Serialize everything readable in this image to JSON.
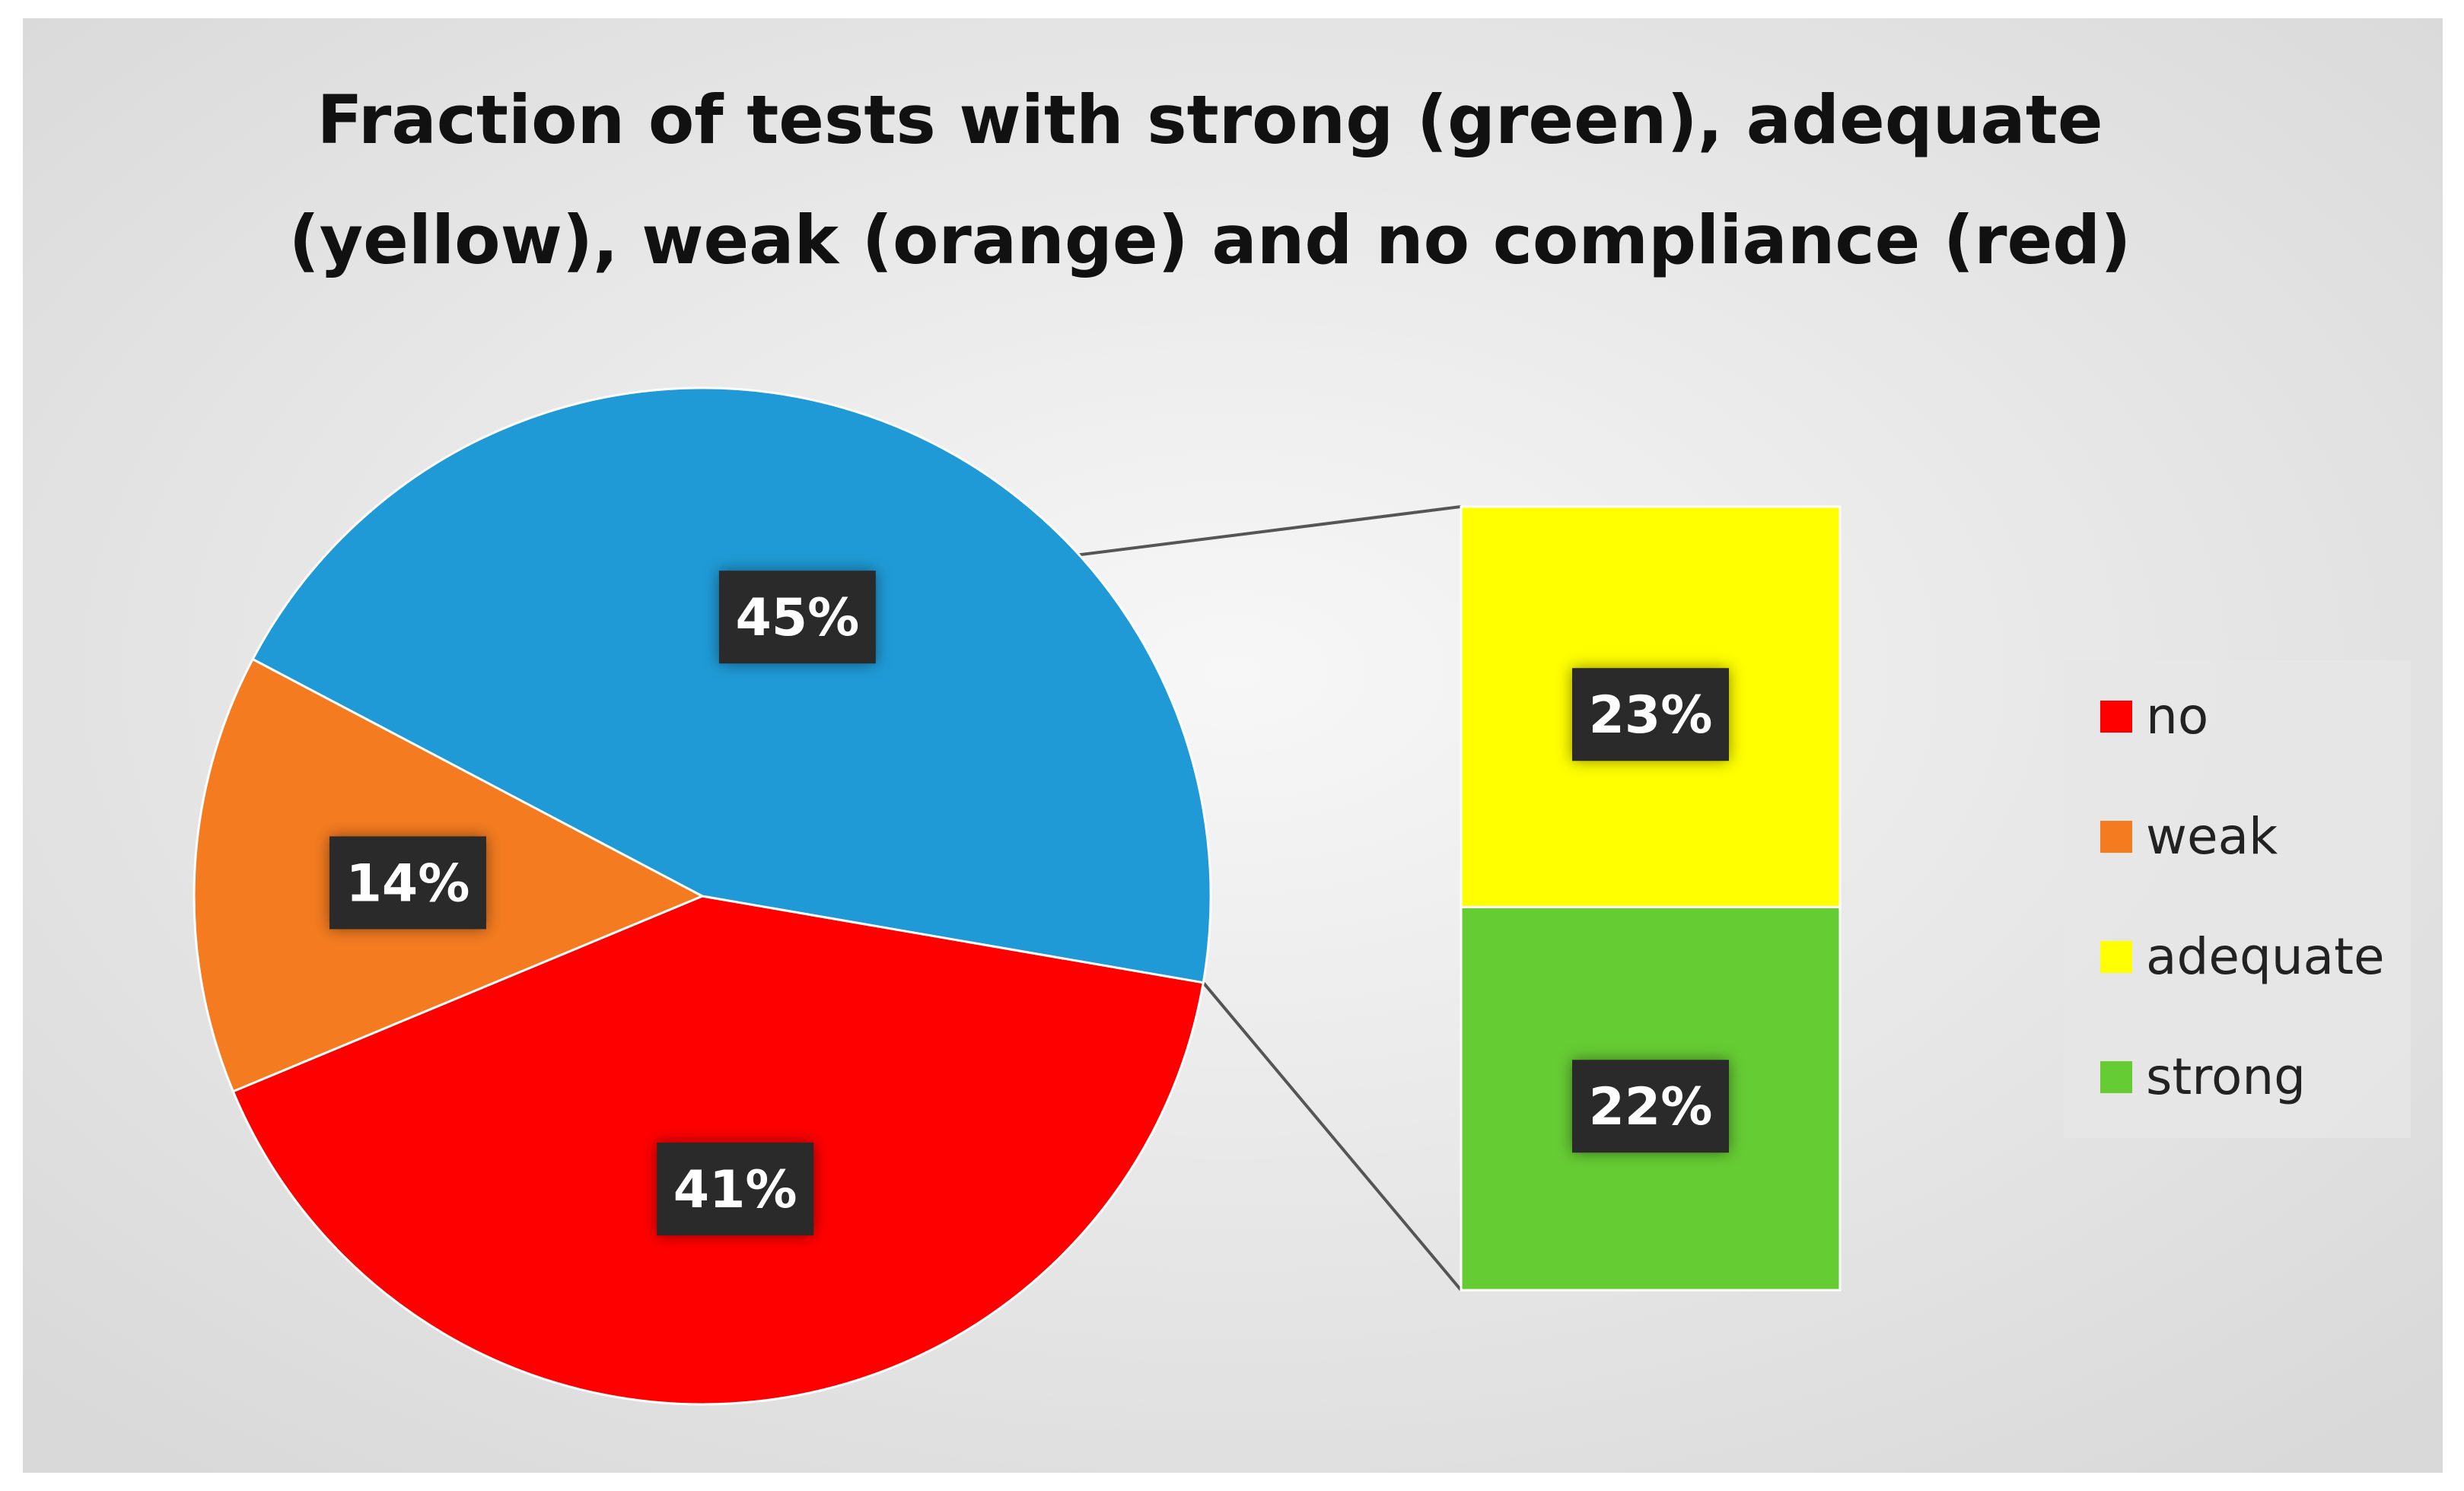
{
  "chart_data": {
    "type": "pie",
    "subtype": "bar-of-pie",
    "title_lines": [
      "Fraction of tests with strong (green), adequate",
      "(yellow), weak (orange) and no compliance (red)"
    ],
    "pie": {
      "slices": [
        {
          "key": "no",
          "value": 41,
          "label": "41%",
          "color": "#ff0000"
        },
        {
          "key": "weak",
          "value": 14,
          "label": "14%",
          "color": "#f47b20"
        },
        {
          "key": "other",
          "value": 45,
          "label": "45%",
          "color": "#1f9ad6"
        }
      ]
    },
    "bar": {
      "segments": [
        {
          "key": "adequate",
          "value": 23,
          "label": "23%",
          "color": "#ffff00"
        },
        {
          "key": "strong",
          "value": 22,
          "label": "22%",
          "color": "#66cc33"
        }
      ]
    },
    "legend": {
      "placement": "right",
      "items": [
        {
          "label": "no",
          "color": "#ff0000"
        },
        {
          "label": "weak",
          "color": "#f47b20"
        },
        {
          "label": "adequate",
          "color": "#ffff00"
        },
        {
          "label": "strong",
          "color": "#66cc33"
        }
      ]
    },
    "background": "#ebebeb",
    "connector_color": "#555555",
    "label_box_color": "#2b2b2b"
  }
}
